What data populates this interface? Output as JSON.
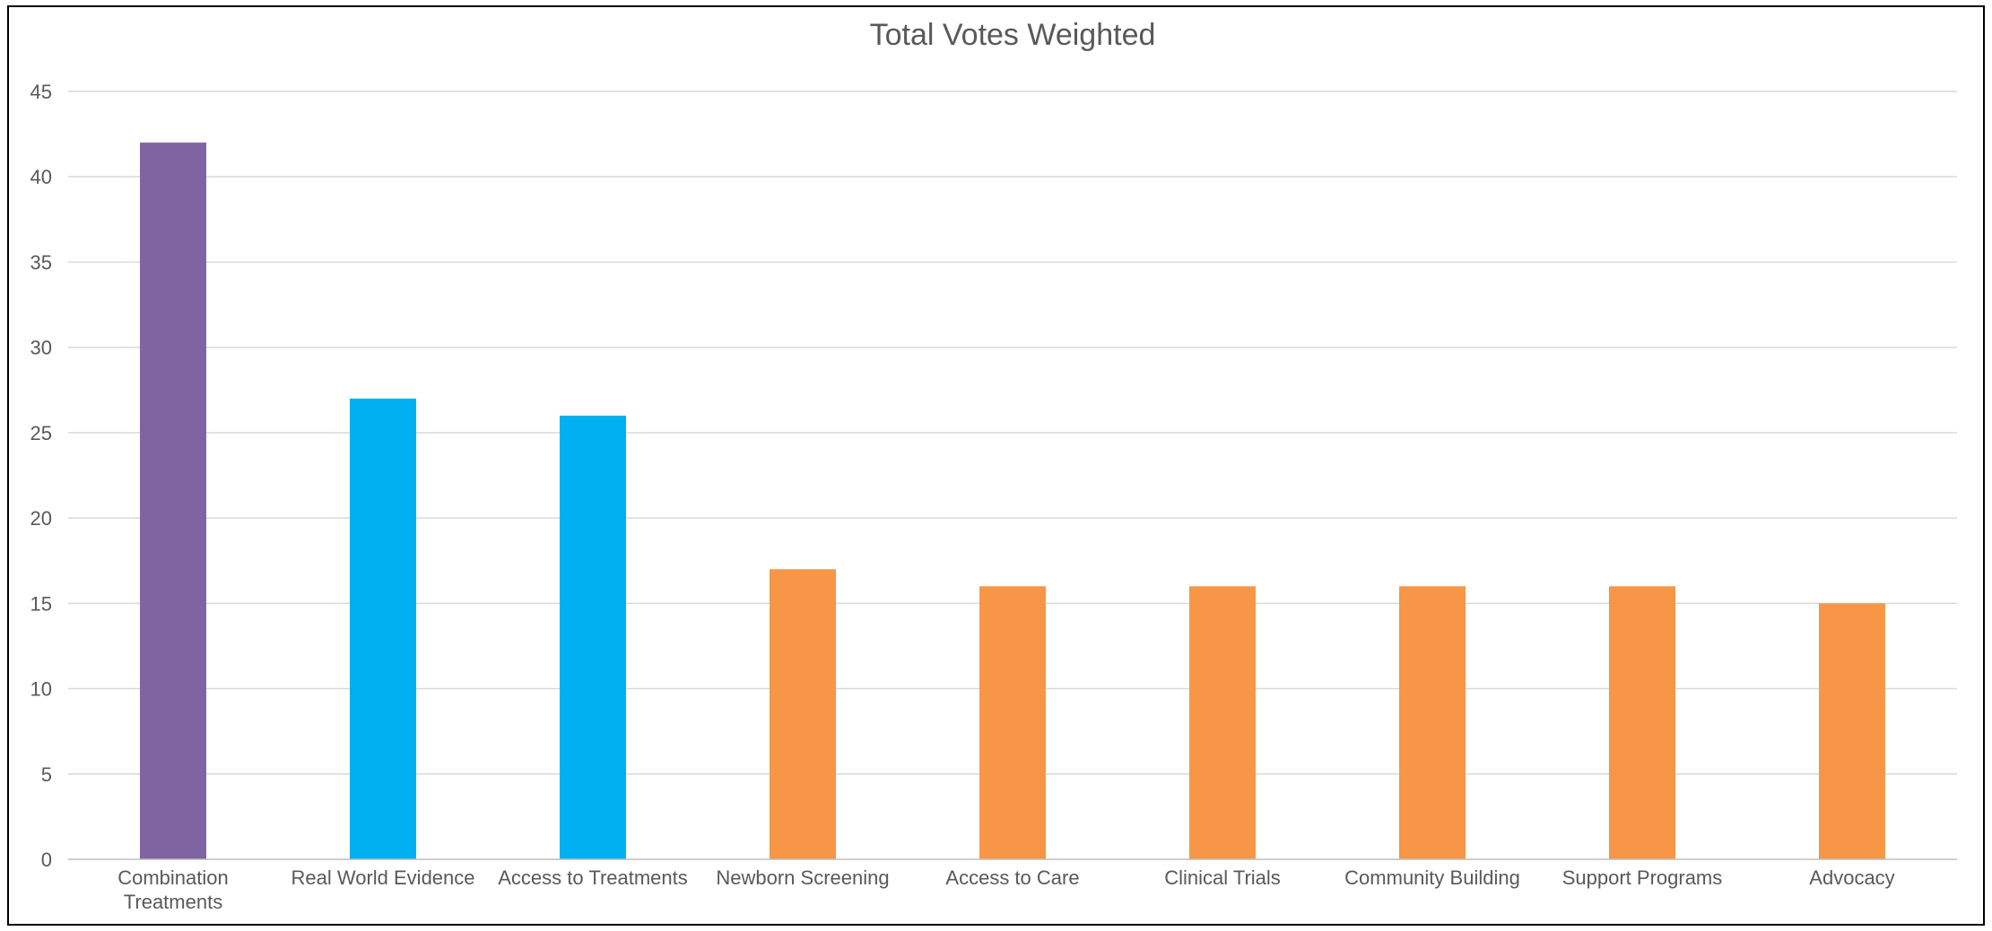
{
  "chart_data": {
    "type": "bar",
    "title": "Total Votes Weighted",
    "xlabel": "",
    "ylabel": "",
    "ylim": [
      0,
      45
    ],
    "yticks": [
      0,
      5,
      10,
      15,
      20,
      25,
      30,
      35,
      40,
      45
    ],
    "grid": true,
    "legend": "none",
    "categories": [
      [
        "Combination",
        "Treatments"
      ],
      [
        "Real World Evidence"
      ],
      [
        "Access to Treatments"
      ],
      [
        "Newborn Screening"
      ],
      [
        "Access to Care"
      ],
      [
        "Clinical Trials"
      ],
      [
        "Community Building"
      ],
      [
        "Support Programs"
      ],
      [
        "Advocacy"
      ]
    ],
    "values": [
      42,
      27,
      26,
      17,
      16,
      16,
      16,
      16,
      15
    ],
    "bar_colors": [
      "#8064A2",
      "#00B0F0",
      "#00B0F0",
      "#F79646",
      "#F79646",
      "#F79646",
      "#F79646",
      "#F79646",
      "#F79646"
    ]
  }
}
